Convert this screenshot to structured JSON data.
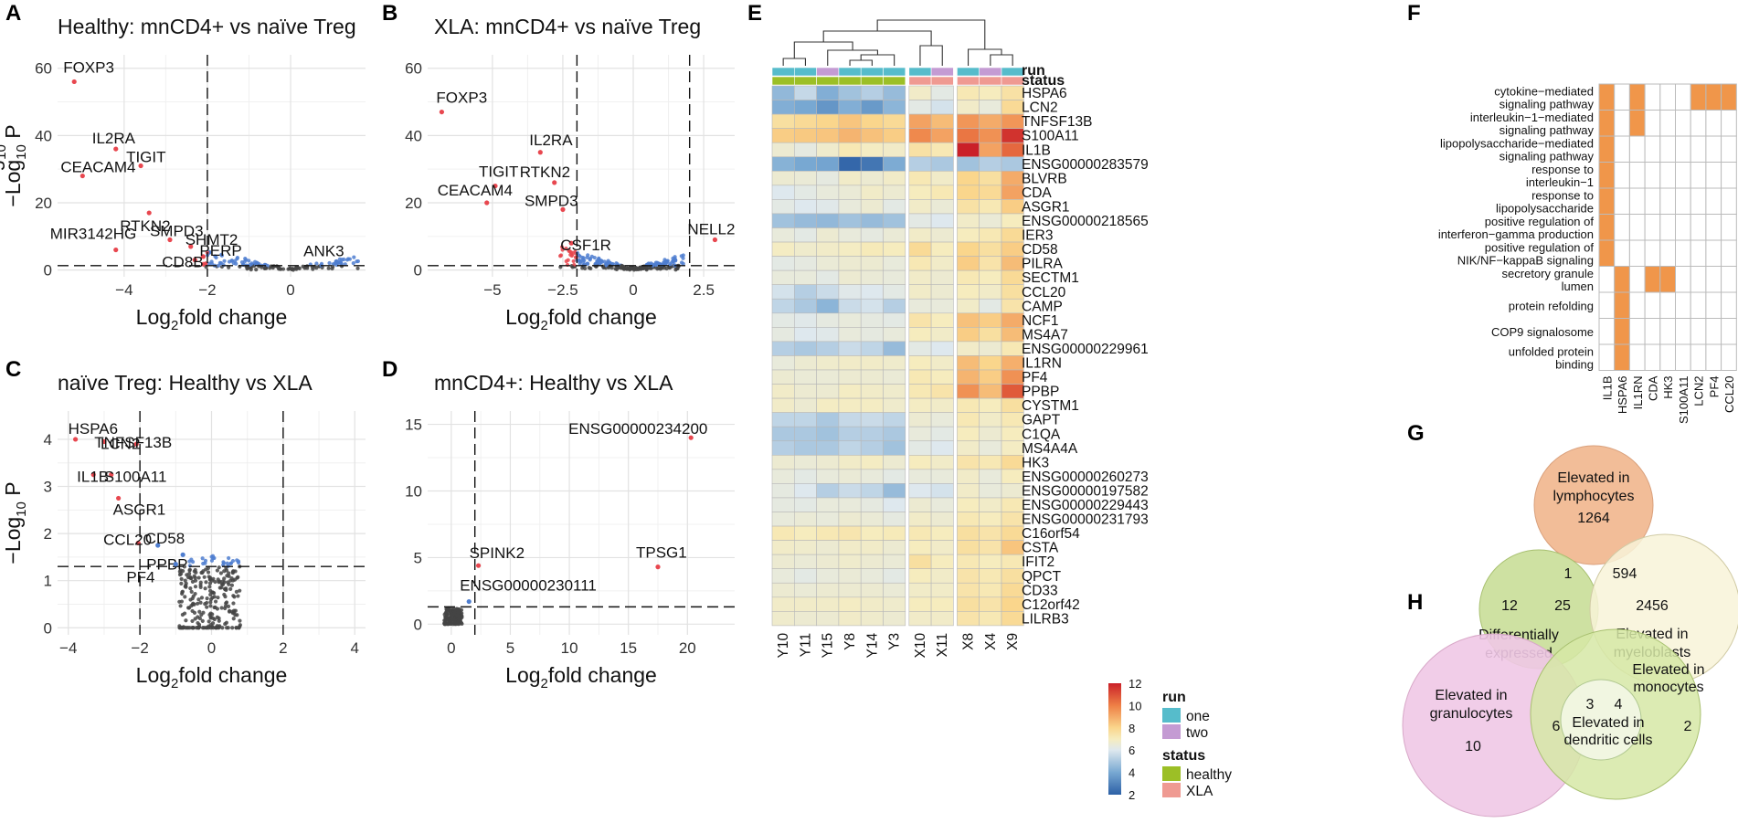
{
  "panel_labels": [
    "A",
    "B",
    "C",
    "D",
    "E",
    "F",
    "G",
    "H"
  ],
  "colors": {
    "sig_red": "#e8474f",
    "nonsig_blue": "#4f7ed0",
    "ns_gray": "#444444",
    "run_one": "#56bccb",
    "run_two": "#c49bd3",
    "healthy": "#9cbf26",
    "xla": "#ef9a92",
    "go_fill": "#f0964a",
    "venn_lymph": "#f2bd98",
    "venn_diff": "#c9de98",
    "venn_myelo": "#f8f3d8",
    "venn_gran": "#f0c8e6",
    "venn_mono": "#d6e7a6",
    "venn_dc": "#f3f7e6"
  },
  "chart_data": [
    {
      "id": "A",
      "type": "scatter",
      "title": "Healthy: mnCD4+ vs naïve Treg",
      "xlabel": "Log2fold change",
      "ylabel": "-Log10 P",
      "xlim": [
        -5.6,
        1.8
      ],
      "ylim": [
        -2,
        64
      ],
      "xticks": [
        -4,
        -2,
        0
      ],
      "yticks": [
        0,
        20,
        40,
        60
      ],
      "vlines": [
        -2
      ],
      "hline": 1.3,
      "labeled_points": [
        {
          "label": "FOXP3",
          "x": -5.2,
          "y": 56,
          "sig": true
        },
        {
          "label": "IL2RA",
          "x": -4.2,
          "y": 36,
          "sig": true
        },
        {
          "label": "TIGIT",
          "x": -3.6,
          "y": 31,
          "sig": true
        },
        {
          "label": "CEACAM4",
          "x": -5.0,
          "y": 28,
          "sig": true
        },
        {
          "label": "RTKN2",
          "x": -3.4,
          "y": 17,
          "sig": true
        },
        {
          "label": "MIR3142HG",
          "x": -4.2,
          "y": 6,
          "sig": true
        },
        {
          "label": "SMPD3",
          "x": -2.9,
          "y": 9,
          "sig": true
        },
        {
          "label": "SHMT2",
          "x": -2.4,
          "y": 7,
          "sig": true
        },
        {
          "label": "PERP",
          "x": -2.1,
          "y": 4,
          "sig": true
        },
        {
          "label": "CD8B",
          "x": -2.3,
          "y": 3,
          "sig": true
        },
        {
          "label": "ANK3",
          "x": 1.1,
          "y": 2.5,
          "sig": false
        }
      ]
    },
    {
      "id": "B",
      "type": "scatter",
      "title": "XLA: mnCD4+ vs naïve Treg",
      "xlabel": "Log2fold change",
      "ylabel": "-Log10 P",
      "xlim": [
        -7.3,
        3.6
      ],
      "ylim": [
        -2,
        64
      ],
      "xticks": [
        -5,
        -2.5,
        0,
        2.5
      ],
      "yticks": [
        0,
        20,
        40,
        60
      ],
      "vlines": [
        -2,
        2
      ],
      "hline": 1.3,
      "labeled_points": [
        {
          "label": "FOXP3",
          "x": -6.8,
          "y": 47,
          "sig": true
        },
        {
          "label": "IL2RA",
          "x": -3.3,
          "y": 35,
          "sig": true
        },
        {
          "label": "TIGIT",
          "x": -4.9,
          "y": 25,
          "sig": true
        },
        {
          "label": "RTKN2",
          "x": -2.8,
          "y": 26,
          "sig": true
        },
        {
          "label": "CEACAM4",
          "x": -5.2,
          "y": 20,
          "sig": true
        },
        {
          "label": "SMPD3",
          "x": -2.5,
          "y": 18,
          "sig": true
        },
        {
          "label": "CSF1R",
          "x": -2.2,
          "y": 8,
          "sig": true
        },
        {
          "label": "NELL2",
          "x": 2.9,
          "y": 9,
          "sig": true
        }
      ]
    },
    {
      "id": "C",
      "type": "scatter",
      "title": "naïve Treg: Healthy vs XLA",
      "xlabel": "Log2fold change",
      "ylabel": "-Log10 P",
      "xlim": [
        -4.3,
        4.3
      ],
      "ylim": [
        -0.15,
        4.6
      ],
      "xticks": [
        -4,
        -2,
        0,
        2,
        4
      ],
      "yticks": [
        0,
        1,
        2,
        3,
        4
      ],
      "vlines": [
        -2,
        2
      ],
      "hline": 1.3,
      "labeled_points": [
        {
          "label": "HSPA6",
          "x": -3.8,
          "y": 4.0,
          "sig": true
        },
        {
          "label": "LCN2",
          "x": -3.0,
          "y": 3.95,
          "sig": true
        },
        {
          "label": "TNFSF13B",
          "x": -2.1,
          "y": 3.9,
          "sig": true
        },
        {
          "label": "IL1B",
          "x": -3.3,
          "y": 3.25,
          "sig": true
        },
        {
          "label": "S100A11",
          "x": -2.8,
          "y": 3.25,
          "sig": true
        },
        {
          "label": "ASGR1",
          "x": -2.6,
          "y": 2.75,
          "sig": true
        },
        {
          "label": "CCL20",
          "x": -2.05,
          "y": 1.8,
          "sig": true
        },
        {
          "label": "CD58",
          "x": -1.5,
          "y": 1.75,
          "sig": false
        },
        {
          "label": "PPBP",
          "x": -0.8,
          "y": 1.55,
          "sig": false
        },
        {
          "label": "PF4",
          "x": -1.0,
          "y": 1.35,
          "sig": false
        }
      ]
    },
    {
      "id": "D",
      "type": "scatter",
      "title": "mnCD4+: Healthy vs XLA",
      "xlabel": "Log2fold change",
      "ylabel": "",
      "xlim": [
        -2,
        24
      ],
      "ylim": [
        -0.8,
        16
      ],
      "xticks": [
        0,
        5,
        10,
        15,
        20
      ],
      "yticks": [
        0,
        5,
        10,
        15
      ],
      "vlines": [
        2
      ],
      "hline": 1.3,
      "labeled_points": [
        {
          "label": "ENSG00000234200",
          "x": 20.3,
          "y": 14,
          "sig": true
        },
        {
          "label": "SPINK2",
          "x": 2.3,
          "y": 4.4,
          "sig": true
        },
        {
          "label": "TPSG1",
          "x": 17.5,
          "y": 4.3,
          "sig": true
        },
        {
          "label": "ENSG00000230111",
          "x": 1.5,
          "y": 1.7,
          "sig": false
        }
      ]
    },
    {
      "id": "E",
      "type": "heatmap",
      "annotation_rows": [
        "run",
        "status"
      ],
      "columns": [
        "Y10",
        "Y11",
        "Y15",
        "Y8",
        "Y14",
        "Y3",
        "X10",
        "X11",
        "X8",
        "X4",
        "X9"
      ],
      "run": [
        "one",
        "one",
        "two",
        "one",
        "one",
        "one",
        "one",
        "two",
        "one",
        "two",
        "one"
      ],
      "status": [
        "healthy",
        "healthy",
        "healthy",
        "healthy",
        "healthy",
        "healthy",
        "XLA",
        "XLA",
        "XLA",
        "XLA",
        "XLA"
      ],
      "rows": [
        "HSPA6",
        "LCN2",
        "TNFSF13B",
        "S100A11",
        "IL1B",
        "ENSG00000283579",
        "BLVRB",
        "CDA",
        "ASGR1",
        "ENSG00000218565",
        "IER3",
        "CD58",
        "PILRA",
        "SECTM1",
        "CCL20",
        "CAMP",
        "NCF1",
        "MS4A7",
        "ENSG00000229961",
        "IL1RN",
        "PF4",
        "PPBP",
        "CYSTM1",
        "GAPT",
        "C1QA",
        "MS4A4A",
        "HK3",
        "ENSG00000260273",
        "ENSG00000197582",
        "ENSG00000229443",
        "ENSG00000231793",
        "C16orf54",
        "CSTA",
        "IFIT2",
        "QPCT",
        "CD33",
        "C12orf42",
        "LILRB3"
      ],
      "values": [
        [
          4.5,
          5.5,
          4.2,
          4.8,
          5.2,
          4.6,
          6.8,
          6.2,
          7.2,
          7.0,
          7.5
        ],
        [
          4.2,
          4.0,
          3.5,
          4.2,
          3.6,
          4.4,
          6.2,
          5.8,
          6.8,
          6.4,
          7.8
        ],
        [
          7.6,
          7.8,
          8.0,
          8.4,
          8.0,
          7.8,
          9.2,
          8.6,
          9.5,
          9.0,
          9.5
        ],
        [
          8.2,
          8.3,
          8.4,
          8.8,
          8.5,
          8.2,
          9.8,
          9.2,
          10.2,
          9.6,
          11.6
        ],
        [
          6.6,
          6.3,
          6.7,
          7.2,
          6.9,
          6.8,
          7.5,
          7.2,
          12.0,
          9.2,
          10.5
        ],
        [
          4.3,
          4.0,
          3.9,
          2.2,
          2.6,
          4.1,
          5.2,
          5.0,
          4.8,
          5.2,
          5.0
        ],
        [
          6.6,
          6.5,
          6.3,
          6.8,
          6.6,
          6.8,
          7.2,
          6.8,
          8.0,
          7.6,
          9.0
        ],
        [
          6.0,
          6.2,
          6.4,
          6.5,
          6.8,
          6.6,
          7.0,
          7.2,
          8.0,
          7.8,
          9.2
        ],
        [
          6.2,
          6.0,
          6.1,
          6.4,
          6.6,
          6.2,
          6.8,
          6.5,
          7.5,
          7.2,
          8.2
        ],
        [
          4.8,
          4.6,
          4.5,
          4.8,
          4.6,
          4.8,
          6.2,
          6.0,
          6.8,
          6.5,
          7.0
        ],
        [
          6.4,
          6.2,
          6.6,
          6.4,
          6.3,
          6.5,
          6.8,
          6.6,
          7.0,
          7.2,
          7.8
        ],
        [
          6.9,
          6.7,
          6.8,
          6.9,
          7.1,
          7.0,
          7.8,
          7.0,
          8.0,
          7.6,
          8.2
        ],
        [
          6.2,
          6.3,
          6.5,
          6.6,
          6.6,
          6.4,
          7.2,
          6.8,
          8.2,
          7.4,
          8.6
        ],
        [
          6.4,
          6.4,
          6.2,
          6.6,
          6.5,
          6.4,
          6.8,
          6.6,
          7.2,
          7.0,
          7.8
        ],
        [
          5.8,
          5.2,
          5.6,
          6.1,
          6.0,
          6.2,
          6.8,
          6.6,
          7.0,
          6.8,
          7.6
        ],
        [
          5.4,
          5.0,
          4.4,
          5.6,
          5.8,
          5.2,
          6.4,
          6.4,
          6.8,
          6.2,
          7.4
        ],
        [
          6.2,
          6.1,
          6.3,
          6.4,
          6.3,
          6.2,
          7.4,
          7.0,
          8.5,
          8.2,
          9.0
        ],
        [
          6.3,
          6.0,
          6.1,
          6.4,
          6.3,
          6.4,
          7.0,
          6.8,
          8.2,
          7.6,
          8.6
        ],
        [
          5.2,
          5.0,
          5.2,
          5.6,
          5.4,
          4.6,
          6.2,
          6.0,
          6.8,
          6.6,
          7.2
        ],
        [
          6.4,
          6.6,
          6.7,
          6.8,
          6.8,
          6.7,
          7.0,
          6.8,
          8.6,
          8.0,
          8.9
        ],
        [
          6.6,
          6.5,
          6.5,
          6.6,
          6.6,
          6.5,
          7.2,
          7.0,
          8.8,
          8.2,
          9.6
        ],
        [
          6.8,
          6.6,
          6.6,
          6.9,
          6.8,
          6.7,
          7.2,
          7.4,
          9.6,
          8.6,
          10.8
        ],
        [
          6.8,
          6.6,
          6.9,
          6.9,
          6.9,
          6.7,
          6.9,
          6.8,
          7.2,
          7.0,
          7.6
        ],
        [
          5.4,
          5.4,
          5.0,
          5.5,
          5.6,
          5.4,
          6.6,
          6.4,
          7.2,
          6.8,
          7.2
        ],
        [
          5.0,
          5.0,
          4.8,
          5.2,
          5.2,
          5.0,
          6.4,
          6.2,
          7.0,
          6.6,
          7.0
        ],
        [
          5.2,
          5.0,
          5.0,
          5.4,
          5.2,
          4.8,
          6.2,
          6.0,
          6.8,
          6.4,
          6.9
        ],
        [
          6.6,
          6.5,
          6.6,
          6.8,
          6.9,
          6.6,
          7.0,
          6.8,
          7.4,
          7.2,
          7.8
        ],
        [
          6.4,
          6.2,
          6.4,
          6.5,
          6.4,
          6.2,
          6.4,
          6.4,
          6.8,
          6.4,
          7.0
        ],
        [
          6.3,
          6.0,
          5.2,
          5.6,
          5.4,
          4.6,
          6.0,
          5.8,
          6.8,
          6.4,
          6.6
        ],
        [
          6.3,
          6.2,
          6.4,
          6.4,
          6.3,
          6.0,
          6.6,
          6.4,
          7.0,
          6.8,
          7.2
        ],
        [
          6.4,
          6.5,
          6.4,
          6.6,
          6.5,
          6.3,
          6.8,
          6.6,
          7.2,
          7.0,
          7.4
        ],
        [
          7.2,
          7.0,
          7.2,
          7.3,
          7.0,
          7.1,
          7.2,
          7.0,
          7.6,
          7.4,
          7.8
        ],
        [
          6.8,
          6.7,
          6.6,
          6.8,
          6.8,
          6.6,
          7.0,
          6.8,
          7.6,
          7.4,
          8.4
        ],
        [
          6.6,
          6.5,
          6.6,
          6.7,
          6.6,
          6.5,
          7.6,
          7.0,
          7.2,
          7.0,
          7.2
        ],
        [
          6.4,
          6.2,
          6.4,
          6.5,
          6.4,
          6.2,
          7.0,
          6.8,
          7.4,
          7.2,
          7.6
        ],
        [
          6.6,
          6.5,
          6.6,
          6.6,
          6.6,
          6.5,
          6.8,
          6.8,
          7.4,
          7.2,
          7.8
        ],
        [
          6.8,
          6.8,
          6.8,
          6.9,
          6.8,
          6.7,
          7.0,
          7.0,
          7.6,
          7.4,
          8.0
        ],
        [
          6.7,
          6.6,
          6.6,
          6.8,
          6.7,
          6.6,
          6.8,
          6.8,
          7.4,
          7.2,
          7.8
        ]
      ],
      "color_range": [
        2,
        12
      ],
      "legend_ticks": [
        2,
        4,
        6,
        8,
        10,
        12
      ],
      "legend_run_title": "run",
      "legend_run_items": [
        "one",
        "two"
      ],
      "legend_status_title": "status",
      "legend_status_items": [
        "healthy",
        "XLA"
      ]
    },
    {
      "id": "F",
      "type": "heatmap",
      "rows": [
        "cytokine−mediated signaling pathway",
        "interleukin−1−mediated signaling pathway",
        "lipopolysaccharide−mediated signaling pathway",
        "response to interleukin−1",
        "response to lipopolysaccharide",
        "positive regulation of interferon−gamma production",
        "positive regulation of NIK/NF−kappaB signaling",
        "secretory granule lumen",
        "protein refolding",
        "COP9 signalosome",
        "unfolded protein binding"
      ],
      "row_lines": [
        [
          "cytokine−mediated",
          "signaling pathway"
        ],
        [
          "interleukin−1−mediated",
          "signaling pathway"
        ],
        [
          "lipopolysaccharide−mediated",
          "signaling pathway"
        ],
        [
          "response to",
          "interleukin−1"
        ],
        [
          "response to",
          "lipopolysaccharide"
        ],
        [
          "positive regulation of",
          "interferon−gamma production"
        ],
        [
          "positive regulation of",
          "NIK/NF−kappaB signaling"
        ],
        [
          "secretory granule",
          "lumen"
        ],
        [
          "protein refolding"
        ],
        [
          "COP9 signalosome"
        ],
        [
          "unfolded protein",
          "binding"
        ]
      ],
      "columns": [
        "IL1B",
        "HSPA6",
        "IL1RN",
        "CDA",
        "HK3",
        "S100A11",
        "LCN2",
        "PF4",
        "CCL20"
      ],
      "matrix": [
        [
          1,
          0,
          1,
          0,
          0,
          0,
          1,
          1,
          1
        ],
        [
          1,
          0,
          1,
          0,
          0,
          0,
          0,
          0,
          0
        ],
        [
          1,
          0,
          0,
          0,
          0,
          0,
          0,
          0,
          0
        ],
        [
          1,
          0,
          0,
          0,
          0,
          0,
          0,
          0,
          0
        ],
        [
          1,
          0,
          0,
          0,
          0,
          0,
          0,
          0,
          0
        ],
        [
          1,
          0,
          0,
          0,
          0,
          0,
          0,
          0,
          0
        ],
        [
          1,
          0,
          0,
          0,
          0,
          0,
          0,
          0,
          0
        ],
        [
          0,
          1,
          0,
          1,
          1,
          0,
          0,
          0,
          0
        ],
        [
          0,
          1,
          0,
          0,
          0,
          0,
          0,
          0,
          0
        ],
        [
          0,
          1,
          0,
          0,
          0,
          0,
          0,
          0,
          0
        ],
        [
          0,
          1,
          0,
          0,
          0,
          0,
          0,
          0,
          0
        ]
      ]
    }
  ],
  "venn_g": {
    "lymph_label": [
      "Elevated in",
      "lymphocytes"
    ],
    "diff_label": [
      "Differentially",
      "expressed"
    ],
    "myelo_label": [
      "Elevated in",
      "myeloblasts"
    ],
    "n_lymph_only": "1264",
    "n_lymph_diff": "1",
    "n_lymph_myelo": "594",
    "n_diff_only": "12",
    "n_diff_myelo": "25",
    "n_myelo_only": "2456"
  },
  "venn_h": {
    "gran_label": [
      "Elevated in",
      "granulocytes"
    ],
    "mono_label": [
      "Elevated in",
      "monocytes"
    ],
    "dc_label": [
      "Elevated in",
      "dendritic cells"
    ],
    "n_gran_only": "10",
    "n_gran_mono": "6",
    "n_gran_mono_dc": "3",
    "n_mono_dc": "4",
    "n_mono_only": "2"
  }
}
